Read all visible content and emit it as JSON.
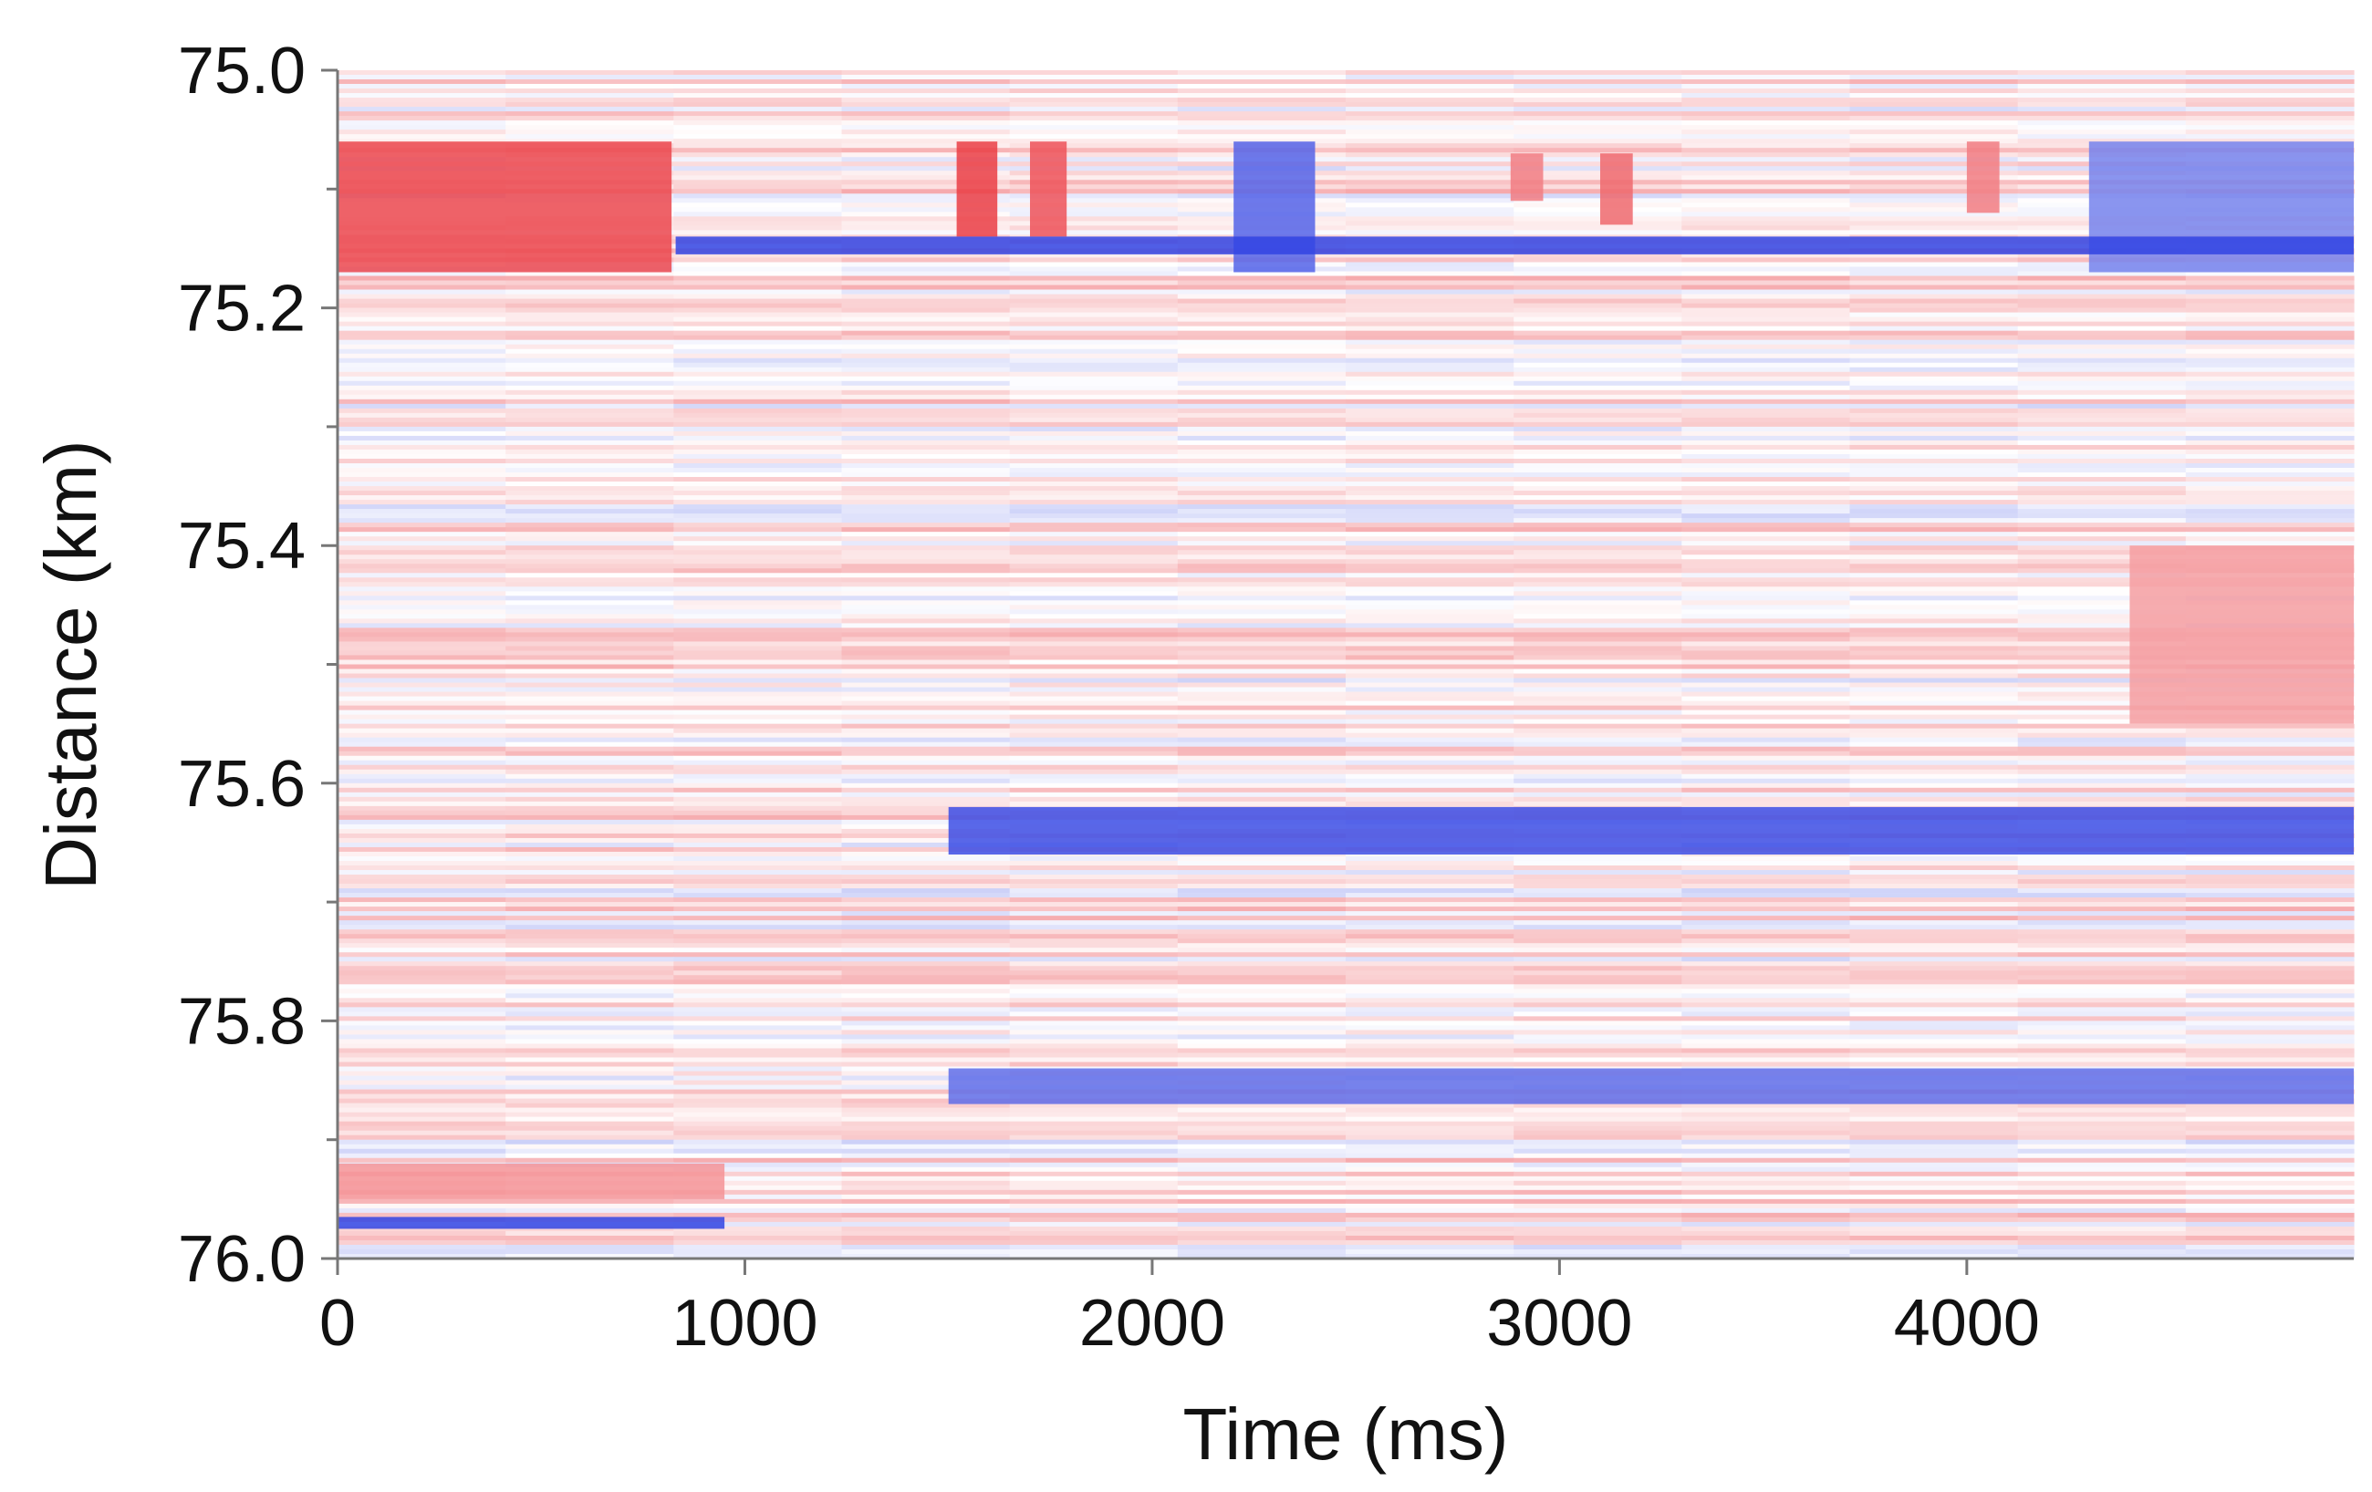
{
  "chart_data": {
    "type": "heatmap",
    "title": "",
    "xlabel": "Time (ms)",
    "ylabel": "Distance (km)",
    "xlim": [
      0,
      4950
    ],
    "ylim": [
      75.0,
      76.0
    ],
    "y_inverted": true,
    "x_ticks": [
      0,
      1000,
      2000,
      3000,
      4000
    ],
    "x_tick_labels": [
      "0",
      "1000",
      "2000",
      "3000",
      "4000"
    ],
    "y_ticks": [
      75.0,
      75.2,
      75.4,
      75.6,
      75.8,
      76.0
    ],
    "y_tick_labels": [
      "75.0",
      "75.2",
      "75.4",
      "75.6",
      "75.8",
      "76.0"
    ],
    "y_minor_ticks": [
      75.1,
      75.3,
      75.5,
      75.7,
      75.9
    ],
    "grid": false,
    "legend": "none",
    "colormap": {
      "negative": "#1a2fe0",
      "zero": "#ffffff",
      "positive": "#e8272f"
    },
    "features": [
      {
        "t_start": 0,
        "t_end": 820,
        "d_start": 75.06,
        "d_end": 75.17,
        "value": 0.85
      },
      {
        "t_start": 1520,
        "t_end": 1620,
        "d_start": 75.06,
        "d_end": 75.14,
        "value": 0.9
      },
      {
        "t_start": 1700,
        "t_end": 1790,
        "d_start": 75.06,
        "d_end": 75.14,
        "value": 0.8
      },
      {
        "t_start": 2880,
        "t_end": 2960,
        "d_start": 75.07,
        "d_end": 75.11,
        "value": 0.6
      },
      {
        "t_start": 3100,
        "t_end": 3180,
        "d_start": 75.07,
        "d_end": 75.13,
        "value": 0.7
      },
      {
        "t_start": 4000,
        "t_end": 4080,
        "d_start": 75.06,
        "d_end": 75.12,
        "value": 0.6
      },
      {
        "t_start": 2200,
        "t_end": 2400,
        "d_start": 75.06,
        "d_end": 75.17,
        "value": -0.75
      },
      {
        "t_start": 4300,
        "t_end": 4950,
        "d_start": 75.06,
        "d_end": 75.17,
        "value": -0.6
      },
      {
        "t_start": 830,
        "t_end": 4950,
        "d_start": 75.14,
        "d_end": 75.155,
        "value": -0.9
      },
      {
        "t_start": 1500,
        "t_end": 4950,
        "d_start": 75.62,
        "d_end": 75.66,
        "value": -0.85
      },
      {
        "t_start": 1500,
        "t_end": 4950,
        "d_start": 75.84,
        "d_end": 75.87,
        "value": -0.7
      },
      {
        "t_start": 0,
        "t_end": 950,
        "d_start": 75.965,
        "d_end": 75.975,
        "value": -0.9
      },
      {
        "t_start": 0,
        "t_end": 950,
        "d_start": 75.92,
        "d_end": 75.95,
        "value": 0.5
      },
      {
        "t_start": 4400,
        "t_end": 4950,
        "d_start": 75.4,
        "d_end": 75.55,
        "value": 0.45
      }
    ]
  }
}
